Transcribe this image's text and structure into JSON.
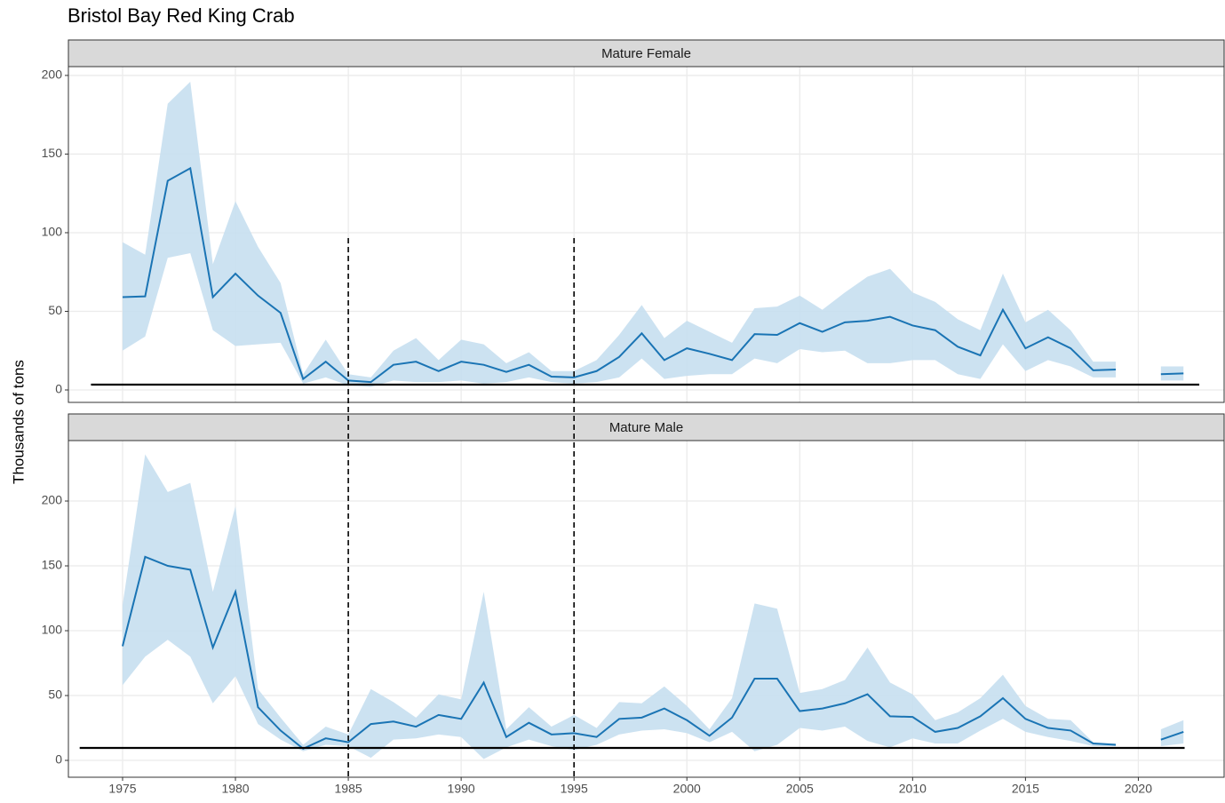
{
  "chart_data": {
    "type": "line",
    "title": "Bristol Bay Red King Crab",
    "y_label": "Thousands of tons",
    "x": [
      1975,
      1976,
      1977,
      1978,
      1979,
      1980,
      1981,
      1982,
      1983,
      1984,
      1985,
      1986,
      1987,
      1988,
      1989,
      1990,
      1991,
      1992,
      1993,
      1994,
      1995,
      1996,
      1997,
      1998,
      1999,
      2000,
      2001,
      2002,
      2003,
      2004,
      2005,
      2006,
      2007,
      2008,
      2009,
      2010,
      2011,
      2012,
      2013,
      2014,
      2015,
      2016,
      2017,
      2018,
      2019,
      2020,
      2021,
      2022
    ],
    "xlim": [
      1972.6,
      2023.8
    ],
    "xticks": [
      1975,
      1980,
      1985,
      1990,
      1995,
      2000,
      2005,
      2010,
      2015,
      2020
    ],
    "vlines": [
      1985,
      1995
    ],
    "line_color": "#1a74b4",
    "band_color": "#c6dff0",
    "grid": true,
    "panels": [
      {
        "name": "Mature Female",
        "ylim": [
          -7.9,
          205.6
        ],
        "yticks": [
          0,
          50,
          100,
          150,
          200
        ],
        "values": [
          59,
          59.5,
          133,
          141,
          59,
          74,
          60,
          49,
          7,
          18,
          6,
          5,
          16,
          18,
          12,
          18,
          16,
          11.5,
          16,
          8.5,
          8,
          12,
          21,
          36,
          19,
          26.5,
          23,
          19,
          35.5,
          35,
          42.5,
          37,
          43,
          44,
          46.5,
          41,
          38,
          27.5,
          22,
          51,
          26.5,
          33.5,
          26.5,
          12.5,
          13,
          null,
          10,
          10.5
        ],
        "lower": [
          25,
          34,
          84,
          87,
          38,
          28,
          29,
          30,
          4,
          8,
          3,
          2,
          6,
          5,
          5,
          6,
          4,
          5,
          8,
          5,
          4,
          5,
          8,
          20,
          7,
          9,
          10,
          10,
          20,
          17,
          26,
          24,
          25,
          17,
          17,
          19,
          19,
          10,
          7,
          29,
          12,
          19,
          15,
          8,
          8,
          null,
          6,
          6
        ],
        "upper": [
          94,
          86,
          182,
          196,
          80,
          120,
          91,
          68,
          10,
          32,
          10,
          8,
          25,
          33,
          19,
          32,
          29,
          17,
          24,
          12,
          12,
          19,
          35,
          54,
          33,
          44,
          37,
          30,
          52,
          53,
          60,
          51,
          62,
          72,
          77,
          62,
          56,
          45,
          38,
          74,
          43,
          51,
          38,
          18,
          18,
          null,
          15,
          15
        ],
        "hline": {
          "value": 3.4,
          "xlim": [
            1973.6,
            2022.7
          ]
        }
      },
      {
        "name": "Mature Male",
        "ylim": [
          -13,
          246.6
        ],
        "yticks": [
          0,
          50,
          100,
          150,
          200
        ],
        "values": [
          88,
          157,
          150,
          147,
          87,
          130,
          41,
          23,
          9,
          17,
          14,
          28,
          30,
          26,
          35,
          32,
          60,
          18,
          29,
          20,
          21,
          18,
          32,
          33,
          40,
          31,
          19,
          33,
          63,
          63,
          38,
          40,
          44,
          51,
          34,
          33.5,
          22,
          25,
          34,
          48,
          32,
          25,
          23,
          13,
          12,
          null,
          16,
          22
        ],
        "lower": [
          58,
          80,
          93,
          80,
          44,
          65,
          28,
          16,
          7,
          12,
          11,
          2,
          16,
          17,
          20,
          18,
          1,
          10,
          16,
          11,
          8,
          12,
          20,
          23,
          24,
          21,
          14,
          22,
          7,
          12,
          25,
          23,
          26,
          15,
          10,
          17,
          13,
          13,
          23,
          32,
          22,
          18,
          15,
          11,
          11,
          null,
          11,
          13
        ],
        "upper": [
          120,
          236,
          207,
          214,
          130,
          196,
          55,
          33,
          12,
          26,
          20,
          55,
          45,
          33,
          51,
          47,
          130,
          24,
          41,
          26,
          35,
          25,
          45,
          44,
          57,
          42,
          24,
          48,
          121,
          117,
          52,
          55,
          62,
          87,
          60,
          51,
          31,
          37,
          48,
          66,
          42,
          32,
          31,
          14,
          13,
          null,
          24,
          31
        ],
        "hline": {
          "value": 9.6,
          "xlim": [
            1973.1,
            2022.05
          ]
        }
      }
    ]
  }
}
